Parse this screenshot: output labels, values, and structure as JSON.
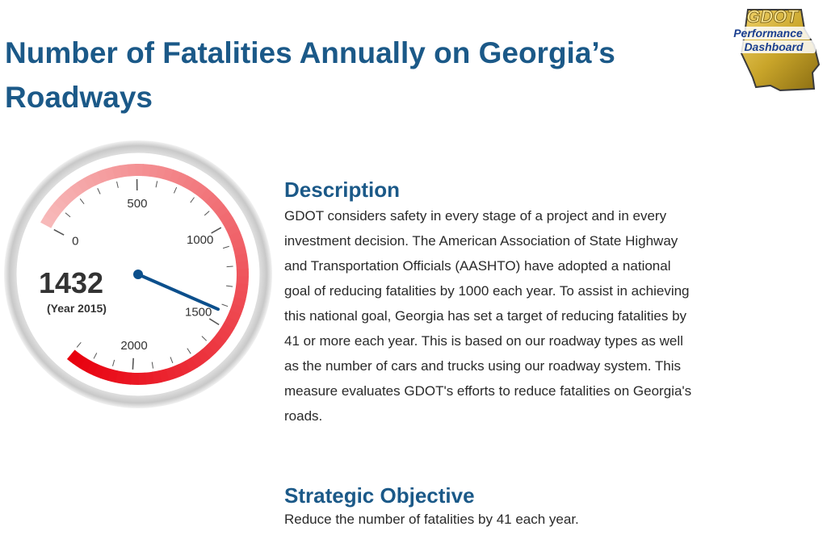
{
  "page": {
    "title": "Number of Fatalities Annually on Georgia’s Roadways"
  },
  "logo": {
    "text_top": "GDOT",
    "text_mid": "Performance",
    "text_bottom": "Dashboard",
    "colors": {
      "state_gold": "#c9a52a",
      "text_blue": "#1b3f8f"
    }
  },
  "gauge": {
    "value": 1432,
    "value_label": "1432",
    "caption": "(Year 2015)",
    "min": 0,
    "max": 2300,
    "tick_labels": [
      "0",
      "500",
      "1000",
      "1500",
      "2000"
    ],
    "colors": {
      "band_start": "#f7b9b9",
      "band_end": "#e8000e",
      "needle": "#0b4f8c"
    }
  },
  "description": {
    "heading": "Description",
    "lines": [
      "GDOT considers safety in every stage of a project and in every",
      "investment decision. The American Association of State Highway",
      "and Transportation Officials (AASHTO) have adopted a national",
      "goal of reducing fatalities by 1000 each year. To assist in achieving",
      "this national goal, Georgia has set a target of reducing fatalities by",
      "41 or more each year. This is based on our roadway types as well",
      "as the number of cars and trucks using our roadway system. This",
      "measure evaluates GDOT's efforts to reduce fatalities on Georgia's",
      "roads."
    ]
  },
  "strategic_objective": {
    "heading": "Strategic Objective",
    "text": "Reduce the number of fatalities by 41 each year."
  },
  "colors": {
    "heading_blue": "#1b5988",
    "body_text": "#2a2a2a"
  }
}
